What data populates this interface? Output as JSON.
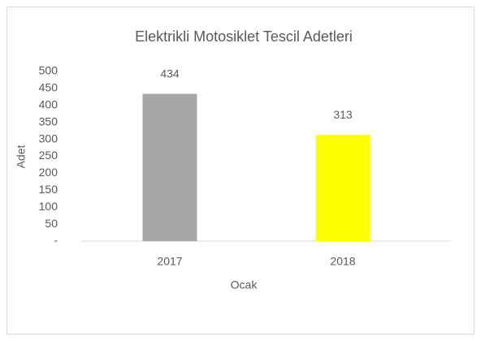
{
  "chart_data": {
    "type": "bar",
    "title": "Elektrikli Motosiklet Tescil Adetleri",
    "xlabel": "Ocak",
    "ylabel": "Adet",
    "categories": [
      "2017",
      "2018"
    ],
    "values": [
      434,
      313
    ],
    "colors": [
      "#a5a5a5",
      "#ffff00"
    ],
    "ylim": [
      0,
      500
    ],
    "yticks": [
      {
        "value": 0,
        "label": "-"
      },
      50,
      100,
      150,
      200,
      250,
      300,
      350,
      400,
      450,
      500
    ],
    "grid": false
  }
}
